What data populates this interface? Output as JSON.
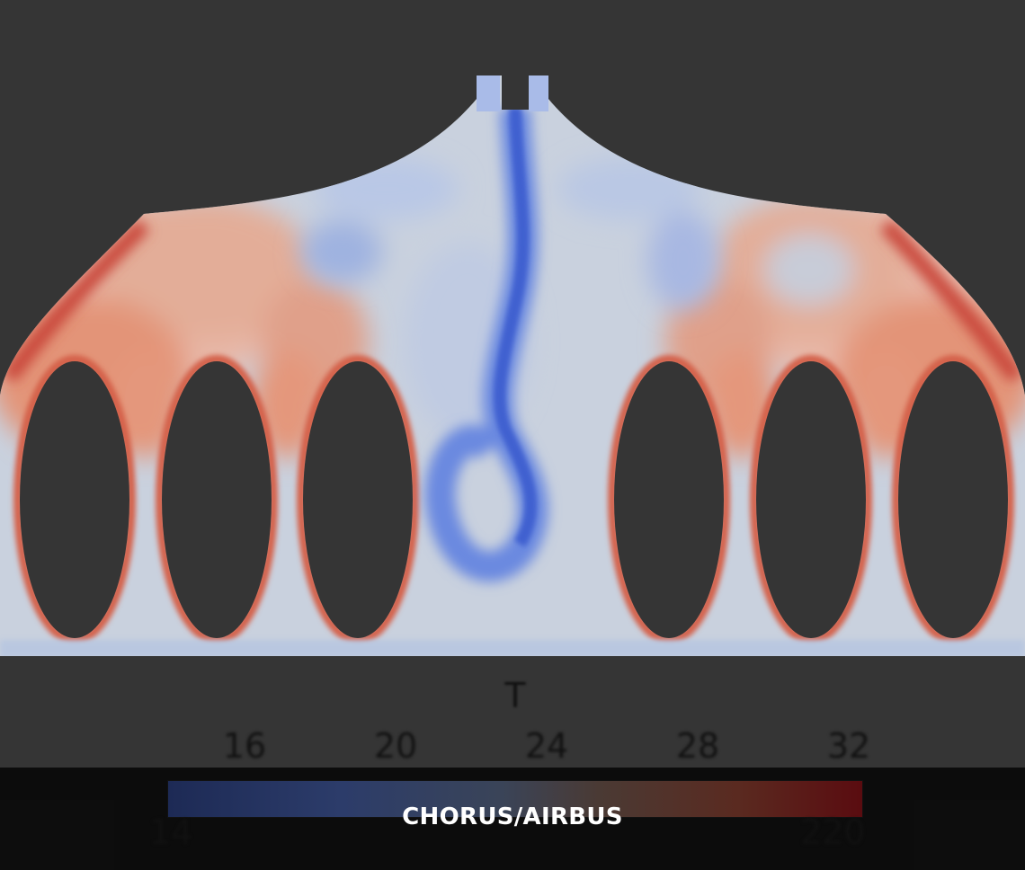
{
  "colorbar": {
    "title": "T",
    "ticks": [
      "16",
      "20",
      "24",
      "28",
      "32"
    ],
    "min_label": "14",
    "max_label": "220",
    "colors": [
      "#1d2a55",
      "#3a4458",
      "#5a2a20",
      "#5a0c10"
    ]
  },
  "credit": "CHORUS/AIRBUS",
  "colors": {
    "background": "#353535",
    "cold": "#5a78d8",
    "neutral": "#c8d0dc",
    "warm": "#e07050",
    "hot": "#c63a30"
  }
}
